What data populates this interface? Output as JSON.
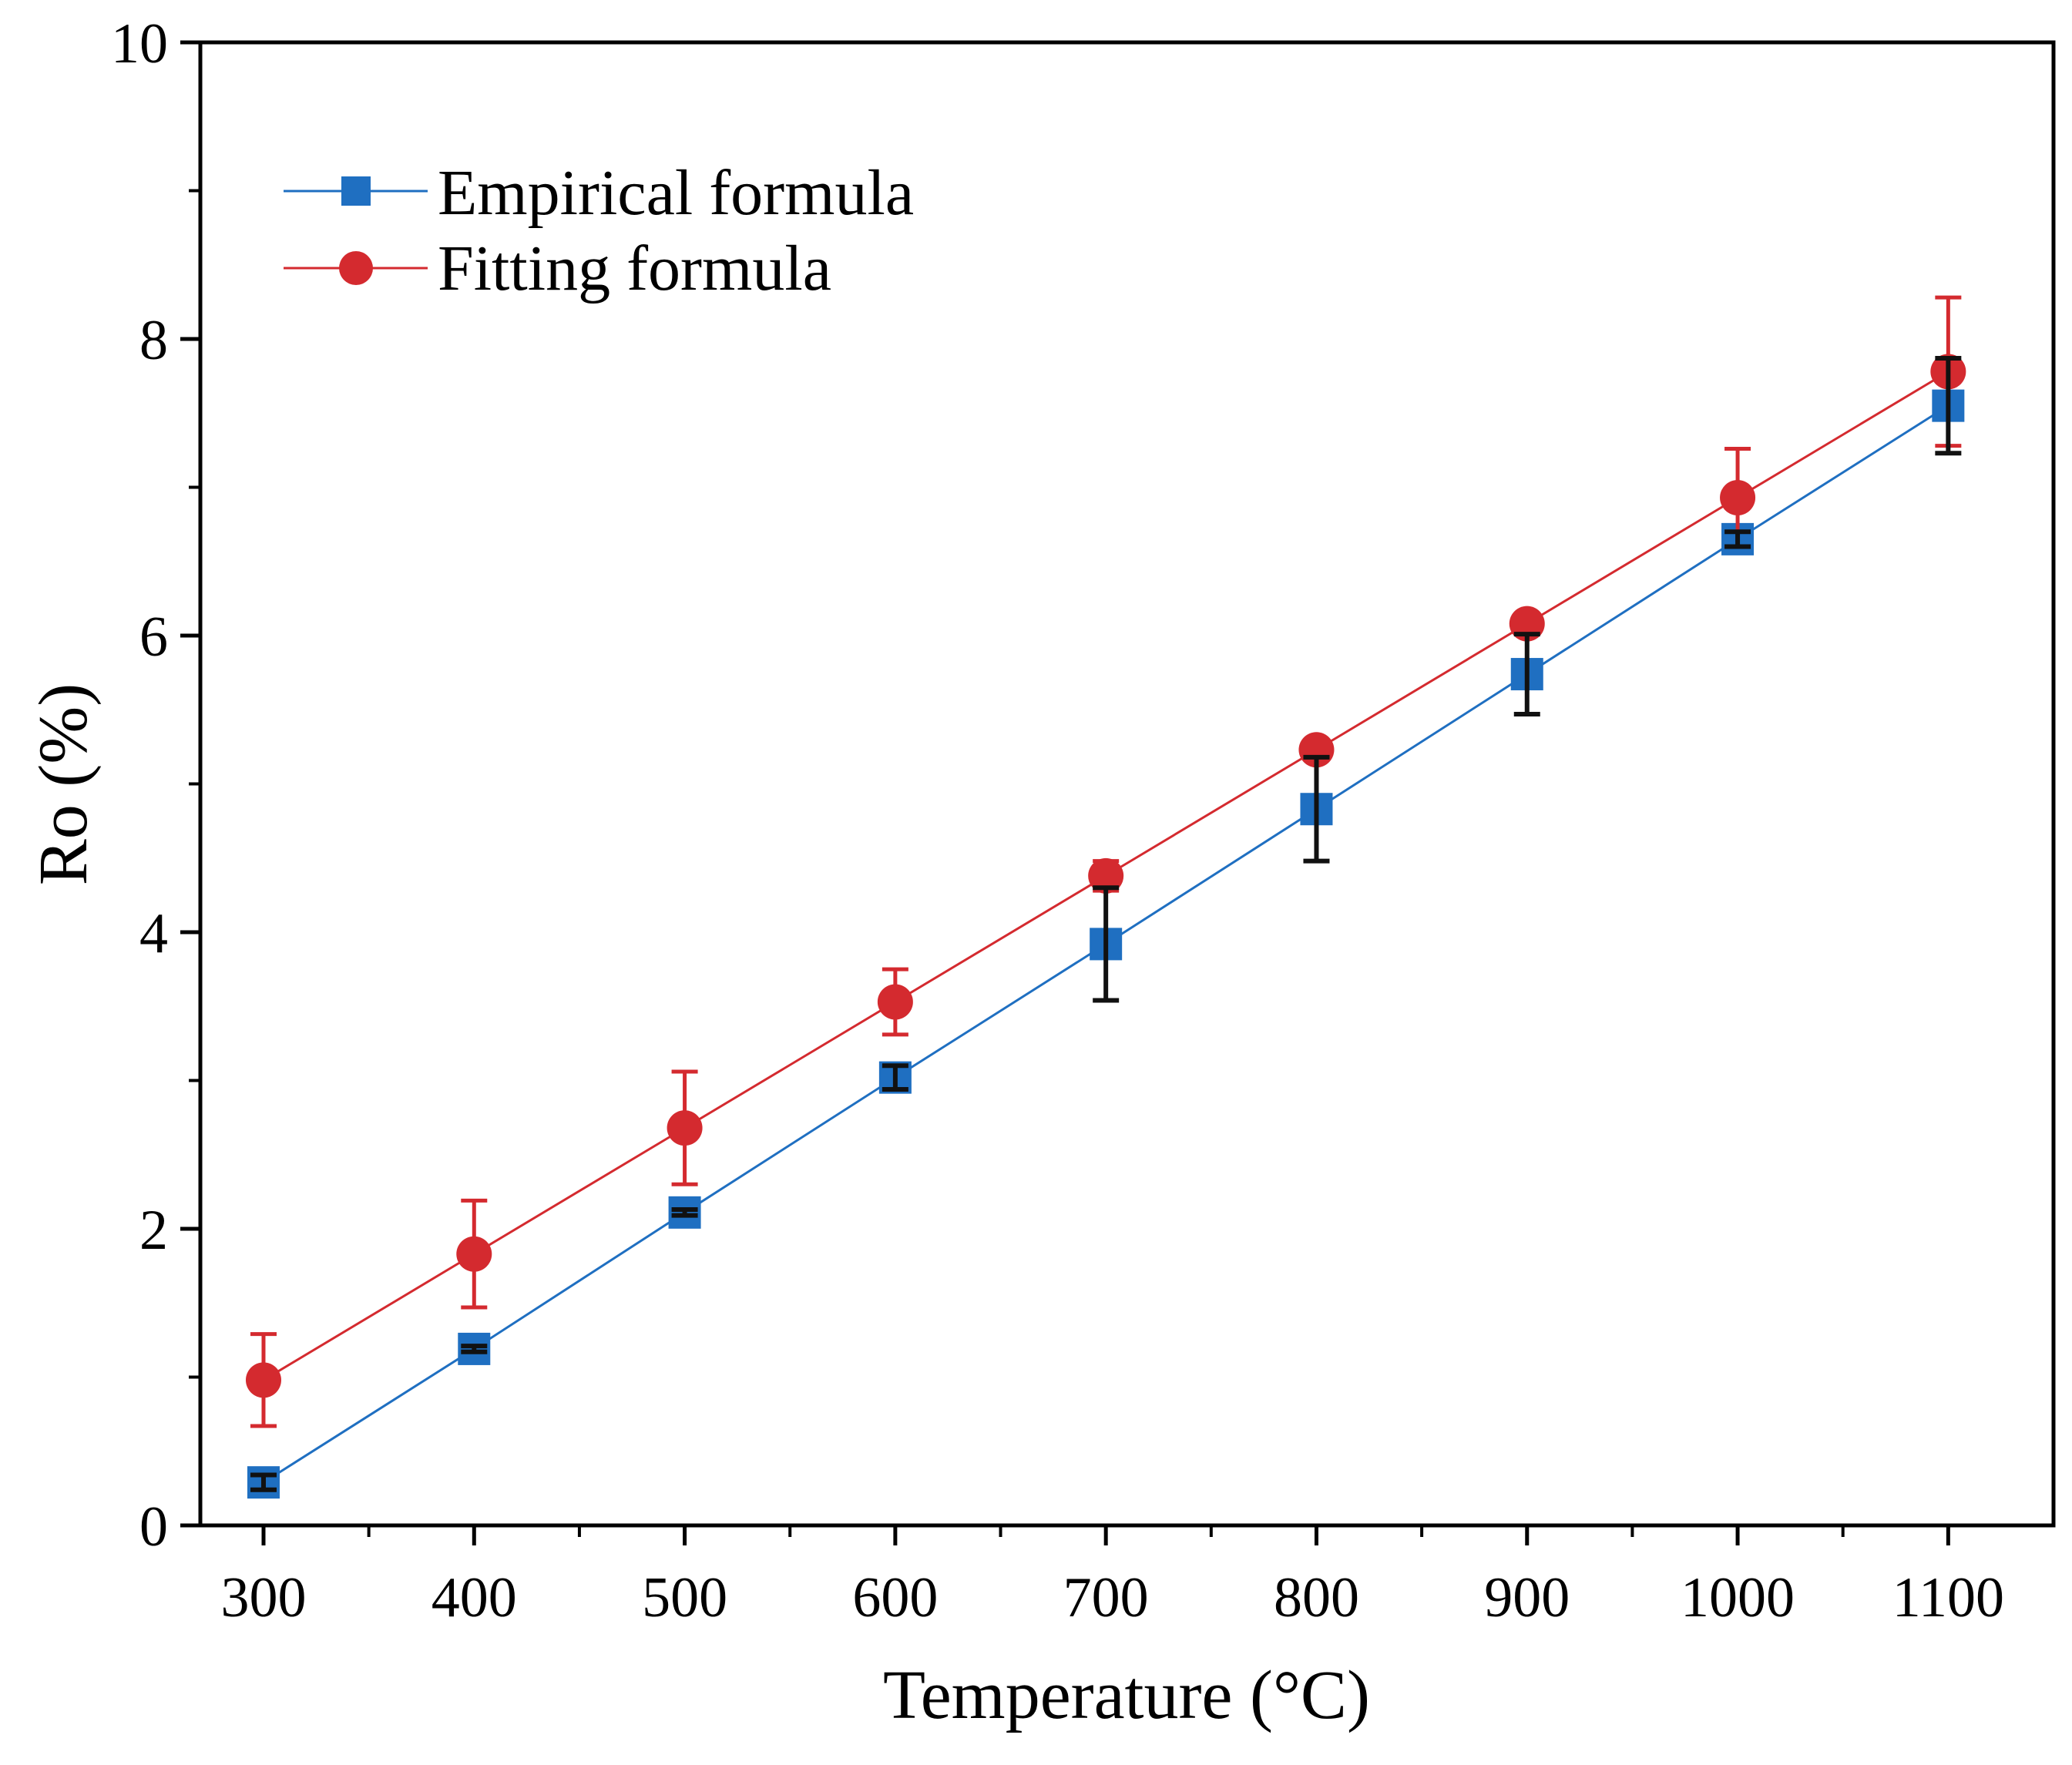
{
  "chart_data": {
    "type": "line",
    "title": "",
    "xlabel": "Temperature (°C)",
    "ylabel": "Ro (%)",
    "xlim": [
      270,
      1150
    ],
    "ylim": [
      0,
      10
    ],
    "x_ticks": [
      300,
      400,
      500,
      600,
      700,
      800,
      900,
      1000,
      1100
    ],
    "x_tick_labels": [
      "300",
      "400",
      "500",
      "600",
      "700",
      "800",
      "900",
      "1000",
      "1100"
    ],
    "y_ticks": [
      0,
      2,
      4,
      6,
      8,
      10
    ],
    "y_tick_labels": [
      "0",
      "2",
      "4",
      "6",
      "8",
      "10"
    ],
    "grid": false,
    "legend_position": "top-left",
    "x": [
      300,
      400,
      500,
      600,
      700,
      800,
      900,
      1000,
      1100
    ],
    "series": [
      {
        "name": "Empirical formula",
        "color": "#1f6fc1",
        "marker": "square",
        "error_color": "#111111",
        "values": [
          0.29,
          1.19,
          2.11,
          3.02,
          3.92,
          4.83,
          5.74,
          6.65,
          7.55
        ],
        "errors": [
          0.05,
          0.02,
          0.02,
          0.08,
          0.38,
          0.35,
          0.27,
          0.05,
          0.32
        ]
      },
      {
        "name": "Fitting formula",
        "color": "#d42a2f",
        "marker": "circle",
        "error_color": "#d42a2f",
        "values": [
          0.98,
          1.83,
          2.68,
          3.53,
          4.38,
          5.23,
          6.08,
          6.93,
          7.78
        ],
        "errors": [
          0.31,
          0.36,
          0.38,
          0.22,
          0.1,
          0.05,
          0.02,
          0.33,
          0.5
        ]
      }
    ]
  }
}
